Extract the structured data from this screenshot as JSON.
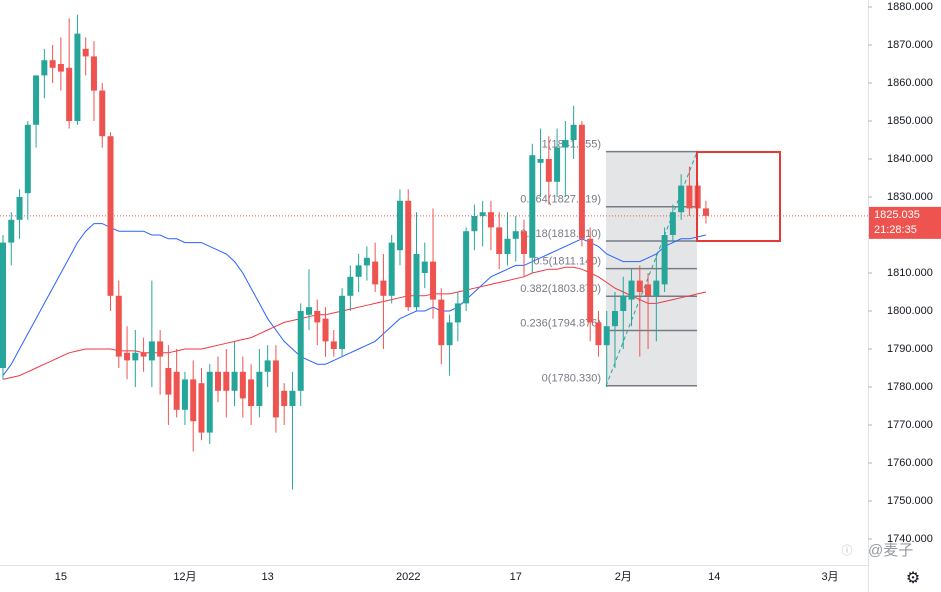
{
  "chart_data": {
    "type": "candlestick",
    "categories": [
      null,
      null,
      null,
      null,
      null,
      null,
      null,
      "15",
      null,
      null,
      null,
      null,
      null,
      null,
      null,
      null,
      null,
      null,
      null,
      null,
      null,
      null,
      "12月",
      null,
      null,
      null,
      null,
      null,
      null,
      null,
      null,
      null,
      "13",
      null,
      null,
      null,
      null,
      null,
      null,
      null,
      null,
      null,
      null,
      null,
      null,
      null,
      null,
      null,
      null,
      "2022",
      null,
      null,
      null,
      null,
      null,
      null,
      null,
      null,
      null,
      null,
      null,
      null,
      "17",
      null,
      null,
      null,
      null,
      null,
      null,
      null,
      null,
      null,
      null,
      null,
      null,
      "2月",
      null,
      null,
      null,
      null,
      null,
      null,
      null,
      null,
      null,
      null,
      "14",
      null,
      null,
      null,
      null,
      null,
      null,
      null,
      null,
      null,
      null,
      null,
      null,
      null,
      "3月"
    ],
    "open": [
      1785,
      1818,
      1824,
      1831,
      1849,
      1862,
      1866,
      1865,
      1864,
      1850,
      1869,
      1867,
      1858,
      1846,
      1804,
      1789,
      1787,
      1789,
      1787,
      1792,
      1785,
      1784,
      1774,
      1782,
      1781,
      1768,
      1784,
      1784,
      1779,
      1784,
      1782,
      1775,
      1784,
      1787,
      1779,
      1775,
      1779,
      1799,
      1800,
      1798,
      1792,
      1790,
      1804,
      1809,
      1812,
      1813,
      1808,
      1804,
      1816,
      1829,
      1801,
      1810,
      1813,
      1803,
      1791,
      1797,
      1802,
      1821,
      1825,
      1826,
      1822,
      1815,
      1819,
      1821,
      1814,
      1839,
      1840,
      1834,
      1843,
      1845,
      1849,
      1819,
      1797,
      1791,
      1796,
      1800,
      1803,
      1808,
      1807,
      1804,
      1807,
      1820,
      1826,
      1833,
      1833,
      1827,
      null,
      null,
      null,
      null,
      null,
      null,
      null,
      null,
      null,
      null,
      null,
      null,
      null,
      null,
      null
    ],
    "high": [
      1820,
      1826,
      1832,
      1850,
      1862,
      1869,
      1870,
      1872,
      1877,
      1878,
      1872,
      1871,
      1860,
      1847,
      1808,
      1796,
      1795,
      1793,
      1808,
      1795,
      1791,
      1790,
      1784,
      1787,
      1785,
      1786,
      1788,
      1790,
      1792,
      1788,
      1786,
      1790,
      1791,
      1791,
      1781,
      1784,
      1802,
      1811,
      1803,
      1801,
      1795,
      1806,
      1812,
      1815,
      1817,
      1818,
      1815,
      1820,
      1832,
      1832,
      1826,
      1818,
      1827,
      1806,
      1799,
      1805,
      1822,
      1828,
      1829,
      1829,
      1826,
      1826,
      1825,
      1824,
      1844,
      1848,
      1846,
      1848,
      1850,
      1854,
      1850,
      1822,
      1800,
      1800,
      1805,
      1809,
      1811,
      1812,
      1810,
      1815,
      1822,
      1828,
      1836,
      1838,
      1834,
      1829,
      null,
      null,
      null,
      null,
      null,
      null,
      null,
      null,
      null,
      null,
      null,
      null,
      null,
      null,
      null
    ],
    "low": [
      1782,
      1812,
      1819,
      1824,
      1843,
      1856,
      1860,
      1858,
      1848,
      1849,
      1862,
      1850,
      1843,
      1800,
      1785,
      1782,
      1780,
      1784,
      1780,
      1778,
      1770,
      1772,
      1770,
      1763,
      1766,
      1765,
      1776,
      1772,
      1775,
      1772,
      1770,
      1772,
      1780,
      1768,
      1770,
      1753,
      1775,
      1795,
      1791,
      1788,
      1788,
      1788,
      1800,
      1805,
      1808,
      1805,
      1790,
      1802,
      1812,
      1800,
      1800,
      1806,
      1798,
      1786,
      1783,
      1792,
      1800,
      1816,
      1817,
      1816,
      1811,
      1812,
      1813,
      1809,
      1810,
      1830,
      1828,
      1830,
      1830,
      1840,
      1817,
      1792,
      1788,
      1780,
      1785,
      1790,
      1796,
      1788,
      1790,
      1792,
      1805,
      1818,
      1824,
      1825,
      1825,
      1823,
      null,
      null,
      null,
      null,
      null,
      null,
      null,
      null,
      null,
      null,
      null,
      null,
      null,
      null,
      null
    ],
    "close": [
      1818,
      1824,
      1830,
      1849,
      1862,
      1866,
      1864,
      1863,
      1850,
      1873,
      1867,
      1858,
      1846,
      1804,
      1788,
      1787,
      1789,
      1788,
      1792,
      1788,
      1778,
      1774,
      1782,
      1771,
      1768,
      1784,
      1779,
      1779,
      1784,
      1777,
      1775,
      1784,
      1787,
      1772,
      1775,
      1779,
      1800,
      1801,
      1797,
      1792,
      1790,
      1804,
      1809,
      1812,
      1814,
      1807,
      1804,
      1818,
      1829,
      1801,
      1815,
      1813,
      1803,
      1791,
      1797,
      1802,
      1821,
      1825,
      1826,
      1822,
      1815,
      1819,
      1821,
      1815,
      1841,
      1840,
      1834,
      1843,
      1845,
      1849,
      1819,
      1797,
      1791,
      1796,
      1800,
      1804,
      1808,
      1805,
      1804,
      1808,
      1820,
      1826,
      1833,
      1827,
      1827,
      1825.035,
      null,
      null,
      null,
      null,
      null,
      null,
      null,
      null,
      null,
      null,
      null,
      null,
      null,
      null,
      null
    ],
    "series": [
      {
        "color": "#2962ff",
        "values": [
          1783,
          1786,
          1790,
          1794,
          1798,
          1802,
          1806,
          1810,
          1814,
          1818,
          1821,
          1823,
          1823,
          1822,
          1821,
          1821,
          1821,
          1821,
          1820,
          1820,
          1819,
          1819,
          1818,
          1818,
          1818,
          1817,
          1816,
          1815,
          1813,
          1810,
          1806,
          1802,
          1798,
          1795,
          1792,
          1790,
          1788,
          1787,
          1786,
          1786,
          1787,
          1788,
          1789,
          1790,
          1791,
          1792,
          1794,
          1796,
          1798,
          1799,
          1800,
          1800,
          1801,
          1800,
          1800,
          1801,
          1803,
          1805,
          1807,
          1809,
          1810,
          1811,
          1812,
          1812,
          1813,
          1814,
          1815,
          1816,
          1817,
          1818,
          1819,
          1818,
          1817,
          1815,
          1814,
          1813,
          1813,
          1813,
          1814,
          1815,
          1817,
          1818,
          1819,
          1819,
          1819.5,
          1820,
          null,
          null,
          null,
          null,
          null,
          null,
          null,
          null,
          null,
          null,
          null,
          null,
          null,
          null,
          null
        ]
      },
      {
        "color": "#f23645",
        "values": [
          1782,
          1782.5,
          1783,
          1784,
          1785,
          1786,
          1787,
          1788,
          1789,
          1789.5,
          1790,
          1790,
          1790,
          1790,
          1789.5,
          1789.5,
          1789.5,
          1789,
          1789,
          1789,
          1789,
          1789.5,
          1790,
          1790,
          1790,
          1790.5,
          1791,
          1791.5,
          1792,
          1792.5,
          1793,
          1794,
          1795,
          1796,
          1797,
          1797.5,
          1798,
          1798.5,
          1799,
          1799,
          1799.5,
          1800,
          1800.5,
          1801,
          1801.5,
          1802,
          1802.5,
          1803,
          1803.5,
          1804,
          1804,
          1804,
          1804.5,
          1804.5,
          1804.5,
          1805,
          1805.5,
          1806,
          1806.5,
          1807,
          1807.5,
          1808,
          1808.5,
          1809,
          1810,
          1810.5,
          1811,
          1811,
          1811.5,
          1811.5,
          1811,
          1810,
          1809,
          1807.5,
          1806,
          1805,
          1804,
          1803,
          1802,
          1802,
          1802.5,
          1803,
          1803.5,
          1804,
          1804.5,
          1805,
          null,
          null,
          null,
          null,
          null,
          null,
          null,
          null,
          null,
          null,
          null,
          null,
          null,
          null,
          null
        ]
      }
    ],
    "up_color": "#26a69a",
    "down_color": "#ef5350",
    "ylim": [
      1740,
      1880
    ],
    "yticks": [
      {
        "value": 1740,
        "label": "1740.000"
      },
      {
        "value": 1750,
        "label": "1750.000"
      },
      {
        "value": 1760,
        "label": "1760.000"
      },
      {
        "value": 1770,
        "label": "1770.000"
      },
      {
        "value": 1780,
        "label": "1780.000"
      },
      {
        "value": 1790,
        "label": "1790.000"
      },
      {
        "value": 1800,
        "label": "1800.000"
      },
      {
        "value": 1810,
        "label": "1810.000"
      },
      {
        "value": 1820,
        "label": "1820.000"
      },
      {
        "value": 1830,
        "label": "1830.000"
      },
      {
        "value": 1840,
        "label": "1840.000"
      },
      {
        "value": 1850,
        "label": "1850.000"
      },
      {
        "value": 1860,
        "label": "1860.000"
      },
      {
        "value": 1870,
        "label": "1870.000"
      },
      {
        "value": 1880,
        "label": "1880.000"
      }
    ],
    "fibonacci": [
      {
        "value": 1780.33,
        "label": "0(1780.330)"
      },
      {
        "value": 1794.876,
        "label": "0.236(1794.876)"
      },
      {
        "value": 1803.87,
        "label": "0.382(1803.870)"
      },
      {
        "value": 1811.14,
        "label": "0.5(1811.140)"
      },
      {
        "value": 1818.41,
        "label": "0.618(1818.410)"
      },
      {
        "value": 1827.419,
        "label": "0.764(1827.419)"
      },
      {
        "value": 1841.955,
        "label": "1(1841.955)"
      }
    ],
    "last_price": {
      "value": 1825.035,
      "label": "1825.035"
    },
    "countdown": "21:28:35",
    "watermark": "@麦子"
  }
}
